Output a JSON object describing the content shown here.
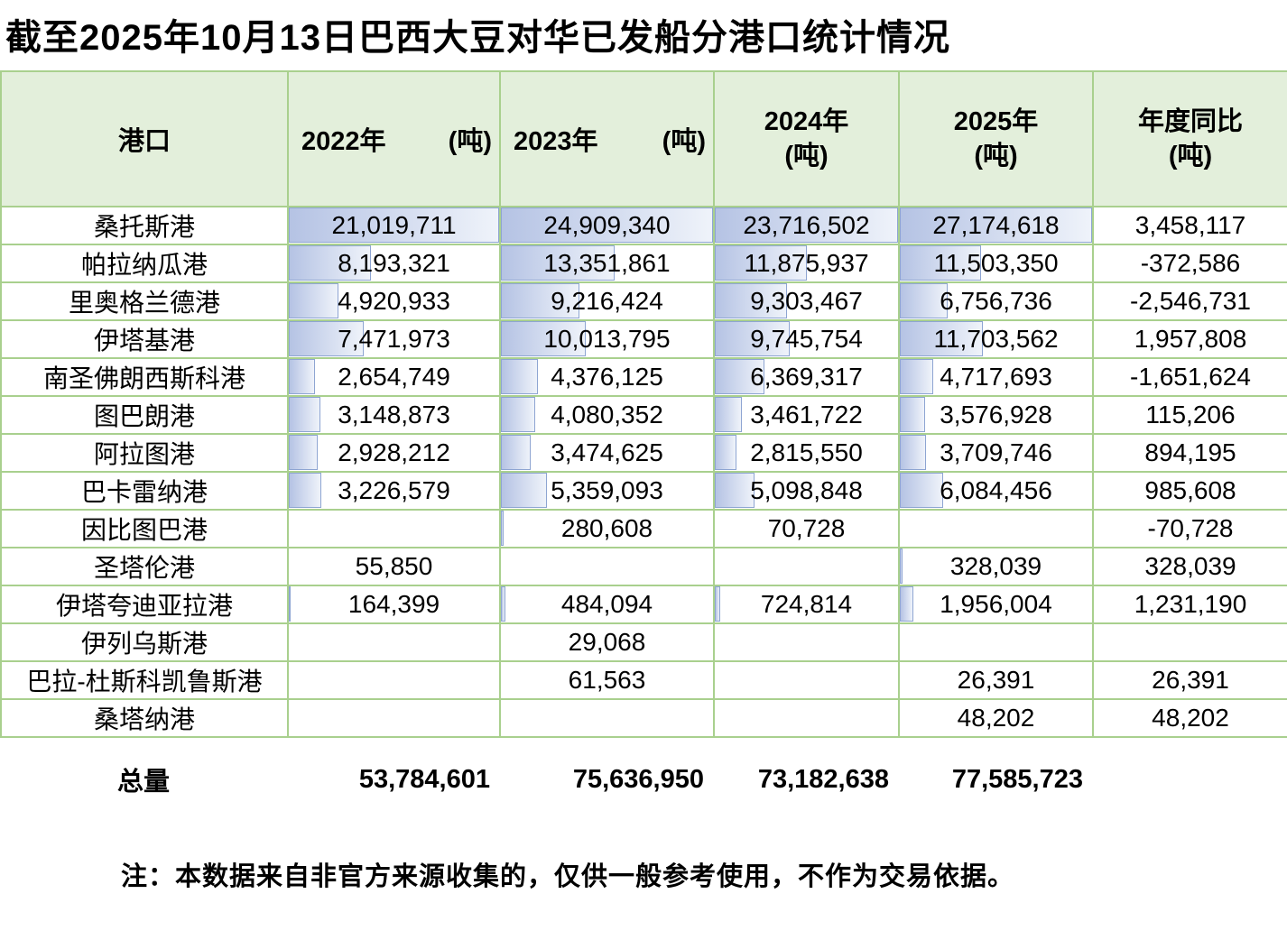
{
  "title": "截至2025年10月13日巴西大豆对华已发船分港口统计情况",
  "note": "注：本数据来自非官方来源收集的，仅供一般参考使用，不作为交易依据。",
  "colors": {
    "grid_border": "#a9d08e",
    "header_background": "#e3efdb",
    "databar_start": "#b5c3e4",
    "databar_end": "#eff3fa",
    "databar_border": "#8ea5d2"
  },
  "table": {
    "port_header": "港口",
    "year_headers": [
      {
        "year": "2022年",
        "unit": "(吨)",
        "stacked": false
      },
      {
        "year": "2023年",
        "unit": "(吨)",
        "stacked": false
      },
      {
        "year": "2024年",
        "unit": "(吨)",
        "stacked": true
      },
      {
        "year": "2025年",
        "unit": "(吨)",
        "stacked": true
      }
    ],
    "yoy_header": {
      "line1": "年度同比",
      "line2": "(吨)"
    },
    "rows": [
      {
        "port": "桑托斯港",
        "y2022": "21,019,711",
        "y2023": "24,909,340",
        "y2024": "23,716,502",
        "y2025": "27,174,618",
        "yoy": "3,458,117"
      },
      {
        "port": "帕拉纳瓜港",
        "y2022": "8,193,321",
        "y2023": "13,351,861",
        "y2024": "11,875,937",
        "y2025": "11,503,350",
        "yoy": "-372,586"
      },
      {
        "port": "里奥格兰德港",
        "y2022": "4,920,933",
        "y2023": "9,216,424",
        "y2024": "9,303,467",
        "y2025": "6,756,736",
        "yoy": "-2,546,731"
      },
      {
        "port": "伊塔基港",
        "y2022": "7,471,973",
        "y2023": "10,013,795",
        "y2024": "9,745,754",
        "y2025": "11,703,562",
        "yoy": "1,957,808"
      },
      {
        "port": "南圣佛朗西斯科港",
        "y2022": "2,654,749",
        "y2023": "4,376,125",
        "y2024": "6,369,317",
        "y2025": "4,717,693",
        "yoy": "-1,651,624"
      },
      {
        "port": "图巴朗港",
        "y2022": "3,148,873",
        "y2023": "4,080,352",
        "y2024": "3,461,722",
        "y2025": "3,576,928",
        "yoy": "115,206"
      },
      {
        "port": "阿拉图港",
        "y2022": "2,928,212",
        "y2023": "3,474,625",
        "y2024": "2,815,550",
        "y2025": "3,709,746",
        "yoy": "894,195"
      },
      {
        "port": "巴卡雷纳港",
        "y2022": "3,226,579",
        "y2023": "5,359,093",
        "y2024": "5,098,848",
        "y2025": "6,084,456",
        "yoy": "985,608"
      },
      {
        "port": "因比图巴港",
        "y2022": "",
        "y2023": "280,608",
        "y2024": "70,728",
        "y2025": "",
        "yoy": "-70,728"
      },
      {
        "port": "圣塔伦港",
        "y2022": "55,850",
        "y2023": "",
        "y2024": "",
        "y2025": "328,039",
        "yoy": "328,039"
      },
      {
        "port": "伊塔夸迪亚拉港",
        "y2022": "164,399",
        "y2023": "484,094",
        "y2024": "724,814",
        "y2025": "1,956,004",
        "yoy": "1,231,190"
      },
      {
        "port": "伊列乌斯港",
        "y2022": "",
        "y2023": "29,068",
        "y2024": "",
        "y2025": "",
        "yoy": ""
      },
      {
        "port": "巴拉-杜斯科凯鲁斯港",
        "y2022": "",
        "y2023": "61,563",
        "y2024": "",
        "y2025": "26,391",
        "yoy": "26,391"
      },
      {
        "port": "桑塔纳港",
        "y2022": "",
        "y2023": "",
        "y2024": "",
        "y2025": "48,202",
        "yoy": "48,202"
      }
    ]
  },
  "totals": {
    "label": "总量",
    "y2022": "53,784,601",
    "y2023": "75,636,950",
    "y2024": "73,182,638",
    "y2025": "77,585,723"
  }
}
